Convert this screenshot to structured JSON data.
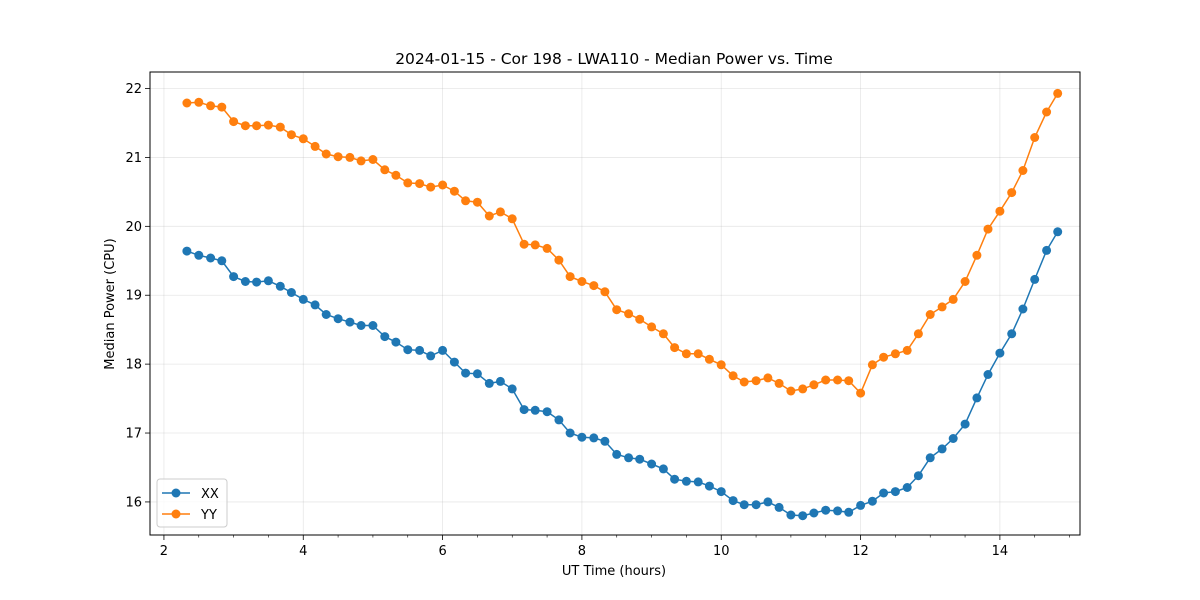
{
  "chart_data": {
    "type": "line",
    "title": "2024-01-15 - Cor 198 - LWA110 - Median Power vs. Time",
    "xlabel": "UT Time (hours)",
    "ylabel": "Median Power (CPU)",
    "xlim": [
      1.8,
      15.15
    ],
    "ylim": [
      15.52,
      22.24
    ],
    "xticks": [
      2,
      4,
      6,
      8,
      10,
      12,
      14
    ],
    "xtick_labels": [
      "2",
      "4",
      "6",
      "8",
      "10",
      "12",
      "14"
    ],
    "yticks": [
      16,
      17,
      18,
      19,
      20,
      21,
      22
    ],
    "ytick_labels": [
      "16",
      "17",
      "18",
      "19",
      "20",
      "21",
      "22"
    ],
    "grid": true,
    "legend_position": "bottom-left",
    "x": [
      2.33,
      2.5,
      2.67,
      2.83,
      3.0,
      3.17,
      3.33,
      3.5,
      3.67,
      3.83,
      4.0,
      4.17,
      4.33,
      4.5,
      4.67,
      4.83,
      5.0,
      5.17,
      5.33,
      5.5,
      5.67,
      5.83,
      6.0,
      6.17,
      6.33,
      6.5,
      6.67,
      6.83,
      7.0,
      7.17,
      7.33,
      7.5,
      7.67,
      7.83,
      8.0,
      8.17,
      8.33,
      8.5,
      8.67,
      8.83,
      9.0,
      9.17,
      9.33,
      9.5,
      9.67,
      9.83,
      10.0,
      10.17,
      10.33,
      10.5,
      10.67,
      10.83,
      11.0,
      11.17,
      11.33,
      11.5,
      11.67,
      11.83,
      12.0,
      12.17,
      12.33,
      12.5,
      12.67,
      12.83,
      13.0,
      13.17,
      13.33,
      13.5,
      13.67,
      13.83,
      14.0,
      14.17,
      14.33,
      14.5,
      14.67,
      14.83
    ],
    "series": [
      {
        "name": "XX",
        "color": "#1f77b4",
        "values": [
          19.64,
          19.58,
          19.54,
          19.5,
          19.27,
          19.2,
          19.19,
          19.21,
          19.13,
          19.04,
          18.94,
          18.86,
          18.72,
          18.66,
          18.61,
          18.56,
          18.56,
          18.4,
          18.32,
          18.21,
          18.2,
          18.12,
          18.2,
          18.03,
          17.87,
          17.86,
          17.72,
          17.75,
          17.64,
          17.34,
          17.33,
          17.31,
          17.19,
          17.0,
          16.94,
          16.93,
          16.88,
          16.69,
          16.64,
          16.62,
          16.55,
          16.48,
          16.33,
          16.3,
          16.29,
          16.23,
          16.15,
          16.02,
          15.96,
          15.96,
          16.0,
          15.92,
          15.81,
          15.8,
          15.84,
          15.88,
          15.87,
          15.85,
          15.95,
          16.01,
          16.13,
          16.15,
          16.21,
          16.38,
          16.64,
          16.77,
          16.92,
          17.13,
          17.51,
          17.85,
          18.16,
          18.44,
          18.8,
          19.23,
          19.65,
          19.92
        ]
      },
      {
        "name": "YY",
        "color": "#ff7f0e",
        "values": [
          21.79,
          21.8,
          21.75,
          21.73,
          21.52,
          21.46,
          21.46,
          21.47,
          21.44,
          21.33,
          21.27,
          21.16,
          21.05,
          21.01,
          21.0,
          20.95,
          20.97,
          20.82,
          20.74,
          20.63,
          20.62,
          20.57,
          20.6,
          20.51,
          20.37,
          20.35,
          20.15,
          20.21,
          20.11,
          19.74,
          19.73,
          19.68,
          19.51,
          19.27,
          19.2,
          19.14,
          19.05,
          18.79,
          18.73,
          18.65,
          18.54,
          18.44,
          18.24,
          18.15,
          18.15,
          18.07,
          17.99,
          17.83,
          17.74,
          17.76,
          17.8,
          17.72,
          17.61,
          17.64,
          17.7,
          17.77,
          17.77,
          17.76,
          17.58,
          17.99,
          18.1,
          18.15,
          18.2,
          18.44,
          18.72,
          18.83,
          18.94,
          19.2,
          19.58,
          19.96,
          20.22,
          20.49,
          20.81,
          21.29,
          21.66,
          21.93
        ]
      }
    ]
  }
}
